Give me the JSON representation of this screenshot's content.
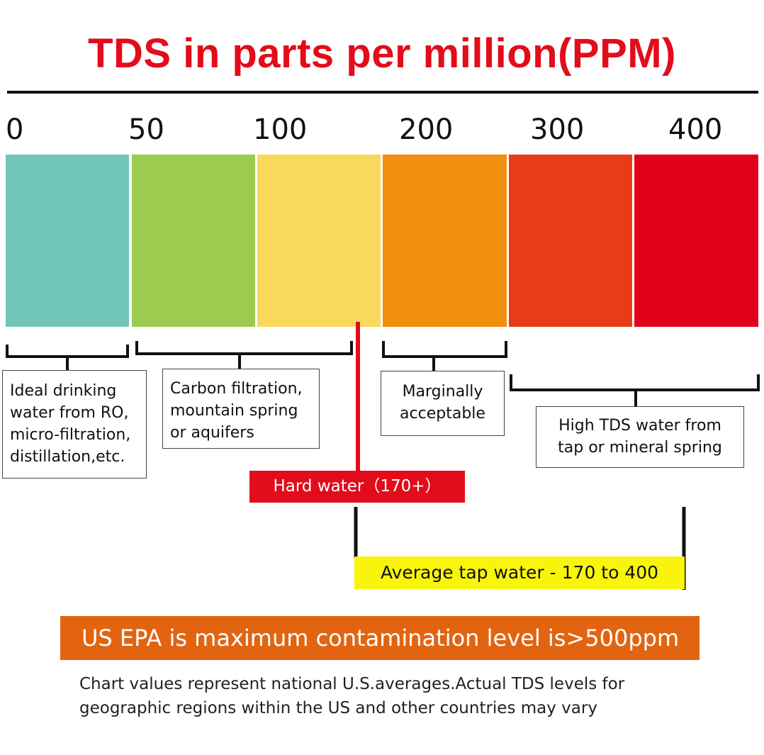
{
  "colors": {
    "title": "#e30c1b",
    "hard_water_bg": "#e30c1b",
    "avg_tap_bg": "#f8f50a",
    "epa_bg": "#e36410"
  },
  "chart_data": {
    "type": "bar",
    "title": "TDS in parts per million(PPM)",
    "tick_labels": [
      "0",
      "50",
      "100",
      "200",
      "300",
      "400"
    ],
    "bands": [
      {
        "color": "#72c6b7"
      },
      {
        "color": "#9dcb4f"
      },
      {
        "color": "#f9d85c"
      },
      {
        "color": "#f28e0d"
      },
      {
        "color": "#e83c18"
      },
      {
        "color": "#e3001b"
      }
    ],
    "ranges": [
      {
        "label": "Ideal drinking\nwater from RO,\nmicro-filtration,\ndistillation,etc."
      },
      {
        "label": "Carbon filtration,\nmountain spring\nor aquifers"
      },
      {
        "label": "Marginally\nacceptable"
      },
      {
        "label": "High TDS water from\ntap or mineral spring"
      }
    ],
    "markers": {
      "hard_water": "Hard water（170+）",
      "average_tap": "Average tap water - 170 to 400"
    },
    "epa_note": "US EPA is maximum contamination level is>500ppm",
    "footnote": "Chart values represent national U.S.averages.Actual TDS levels for\ngeographic regions within the US and other countries may vary"
  }
}
